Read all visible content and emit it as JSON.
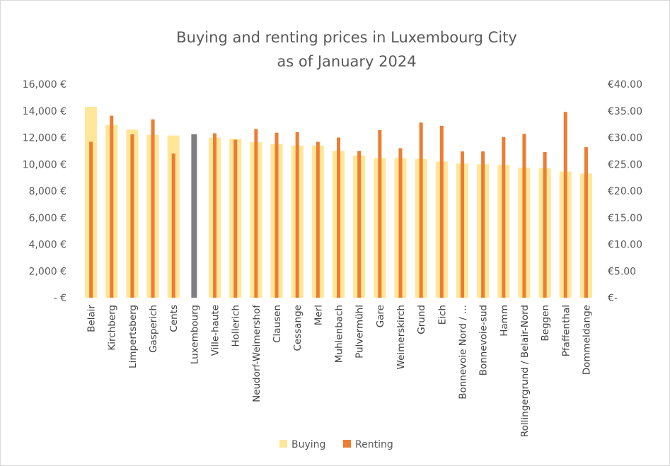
{
  "chart_data": {
    "type": "bar",
    "title": [
      "Buying and renting prices in Luxembourg City",
      "as of January 2024"
    ],
    "categories": [
      "Belair",
      "Kirchberg",
      "Limpertsberg",
      "Gasperich",
      "Cents",
      "Luxembourg",
      "Ville-haute",
      "Hollerich",
      "Neudorf-Weimershof",
      "Clausen",
      "Cessange",
      "Merl",
      "Muhlenbach",
      "Pulvermühl",
      "Gare",
      "Weimerskirch",
      "Grund",
      "Eich",
      "Bonnevoie Nord / ...",
      "Bonnevoie-sud",
      "Hamm",
      "Rollingergrund / Belair-Nord",
      "Beggen",
      "Pfaffenthal",
      "Dommeldange"
    ],
    "series": [
      {
        "name": "Buying",
        "axis": "left",
        "color": "#FFE699",
        "highlight": {
          "index": 5,
          "color": "#7F7F7F"
        },
        "values": [
          14300,
          12950,
          12600,
          12200,
          12150,
          12250,
          12000,
          11900,
          11650,
          11500,
          11400,
          11400,
          11000,
          10650,
          10450,
          10450,
          10400,
          10200,
          10050,
          10000,
          9950,
          9750,
          9700,
          9450,
          9300
        ]
      },
      {
        "name": "Renting",
        "axis": "right",
        "color": "#ED7D31",
        "values": [
          29.2,
          34.1,
          30.6,
          33.4,
          27.0,
          null,
          30.8,
          29.6,
          31.6,
          30.9,
          31.0,
          29.2,
          30.0,
          27.5,
          31.4,
          28.0,
          32.8,
          32.2,
          27.4,
          27.4,
          30.1,
          30.7,
          27.3,
          34.8,
          28.2
        ]
      }
    ],
    "y_left": {
      "min": 0,
      "max": 16000,
      "ticks": [
        "-  €",
        "2,000 €",
        "4,000 €",
        "6,000 €",
        "8,000 €",
        "10,000 €",
        "12,000 €",
        "14,000 €",
        "16,000 €"
      ]
    },
    "y_right": {
      "min": 0,
      "max": 40,
      "ticks": [
        "€-",
        "€5.00",
        "€10.00",
        "€15.00",
        "€20.00",
        "€25.00",
        "€30.00",
        "€35.00",
        "€40.00"
      ]
    },
    "grid": false,
    "legend": {
      "placement": "bottom",
      "items": [
        "Buying",
        "Renting"
      ]
    }
  }
}
